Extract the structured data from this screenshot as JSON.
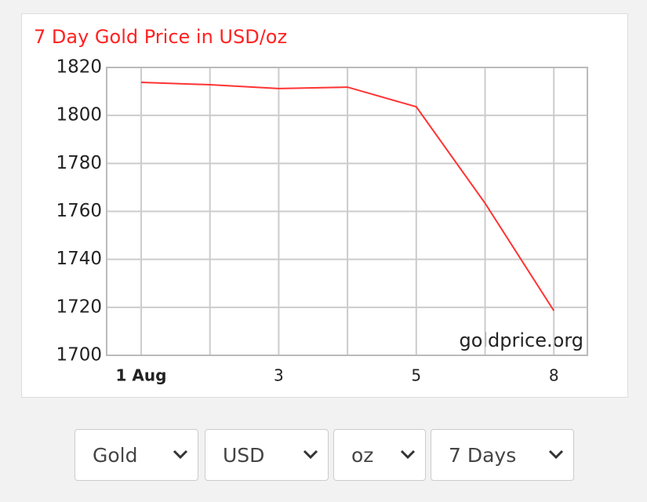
{
  "chart_data": {
    "type": "line",
    "title": "7 Day Gold Price in USD/oz",
    "categories": [
      "1 Aug",
      null,
      "3",
      null,
      "5",
      null,
      "8"
    ],
    "series": [
      {
        "name": "Gold",
        "color": "#ff3333",
        "values": [
          1813.8,
          1812.8,
          1811.2,
          1811.8,
          1803.6,
          1763.4,
          1718.6
        ]
      }
    ],
    "ylim": [
      1700,
      1820
    ],
    "yticks": [
      1700,
      1720,
      1740,
      1760,
      1780,
      1800,
      1820
    ],
    "grid": true,
    "annotation": "goldprice.org"
  },
  "controls": [
    "Gold",
    "USD",
    "oz",
    "7 Days"
  ]
}
